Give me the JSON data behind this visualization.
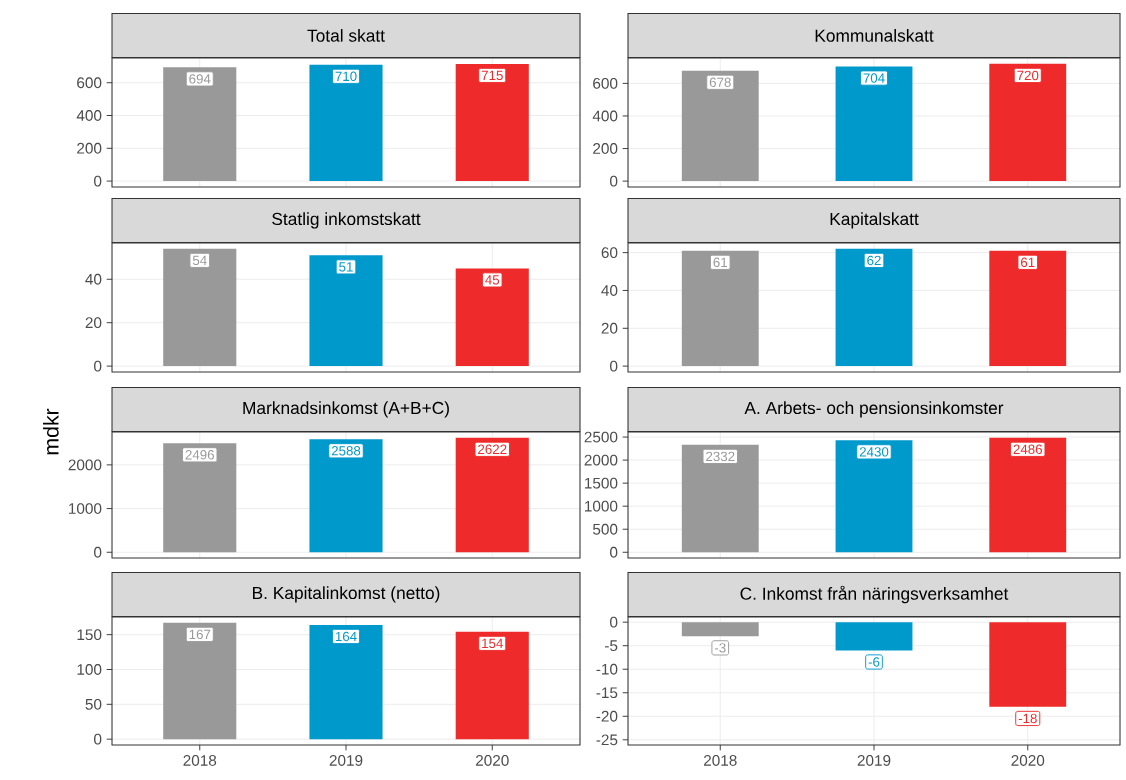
{
  "chart_data": [
    {
      "type": "bar",
      "title": "Total skatt",
      "categories": [
        "2018",
        "2019",
        "2020"
      ],
      "values": [
        694,
        710,
        715
      ],
      "colors": [
        "#999999",
        "#0099cc",
        "#ee2a2a"
      ],
      "ylim": [
        -36,
        751
      ],
      "yticks": [
        0,
        200,
        400,
        600
      ],
      "grid": true,
      "data_labels": true,
      "tick_labels": "y"
    },
    {
      "type": "bar",
      "title": "Kommunalskatt",
      "categories": [
        "2018",
        "2019",
        "2020"
      ],
      "values": [
        678,
        704,
        720
      ],
      "colors": [
        "#999999",
        "#0099cc",
        "#ee2a2a"
      ],
      "ylim": [
        -36,
        756
      ],
      "yticks": [
        0,
        200,
        400,
        600
      ],
      "grid": true,
      "data_labels": true,
      "tick_labels": "y"
    },
    {
      "type": "bar",
      "title": "Statlig inkomstskatt",
      "categories": [
        "2018",
        "2019",
        "2020"
      ],
      "values": [
        54,
        51,
        45
      ],
      "colors": [
        "#999999",
        "#0099cc",
        "#ee2a2a"
      ],
      "ylim": [
        -2.7,
        56.7
      ],
      "yticks": [
        0,
        20,
        40
      ],
      "grid": true,
      "data_labels": true,
      "tick_labels": "y"
    },
    {
      "type": "bar",
      "title": "Kapitalskatt",
      "categories": [
        "2018",
        "2019",
        "2020"
      ],
      "values": [
        61,
        62,
        61
      ],
      "colors": [
        "#999999",
        "#0099cc",
        "#ee2a2a"
      ],
      "ylim": [
        -3.1,
        65.1
      ],
      "yticks": [
        0,
        20,
        40,
        60
      ],
      "grid": true,
      "data_labels": true,
      "tick_labels": "y"
    },
    {
      "type": "bar",
      "title": "Marknadsinkomst (A+B+C)",
      "ylabel": "mdkr",
      "categories": [
        "2018",
        "2019",
        "2020"
      ],
      "values": [
        2496,
        2588,
        2622
      ],
      "colors": [
        "#999999",
        "#0099cc",
        "#ee2a2a"
      ],
      "ylim": [
        -131,
        2753
      ],
      "yticks": [
        0,
        1000,
        2000
      ],
      "grid": true,
      "data_labels": true,
      "tick_labels": "y"
    },
    {
      "type": "bar",
      "title": "A. Arbets- och pensionsinkomster",
      "categories": [
        "2018",
        "2019",
        "2020"
      ],
      "values": [
        2332,
        2430,
        2486
      ],
      "colors": [
        "#999999",
        "#0099cc",
        "#ee2a2a"
      ],
      "ylim": [
        -124,
        2610
      ],
      "yticks": [
        0,
        500,
        1000,
        1500,
        2000,
        2500
      ],
      "grid": true,
      "data_labels": true,
      "tick_labels": "y"
    },
    {
      "type": "bar",
      "title": "B. Kapitalinkomst (netto)",
      "categories": [
        "2018",
        "2019",
        "2020"
      ],
      "values": [
        167,
        164,
        154
      ],
      "colors": [
        "#999999",
        "#0099cc",
        "#ee2a2a"
      ],
      "ylim": [
        -8.35,
        175.35
      ],
      "yticks": [
        0,
        50,
        100,
        150
      ],
      "grid": true,
      "data_labels": true
    },
    {
      "type": "bar",
      "title": "C. Inkomst från näringsverksamhet",
      "categories": [
        "2018",
        "2019",
        "2020"
      ],
      "values": [
        -3,
        -6,
        -18
      ],
      "colors": [
        "#999999",
        "#0099cc",
        "#ee2a2a"
      ],
      "ylim": [
        -26.1,
        1.1
      ],
      "yticks": [
        0,
        -5,
        -10,
        -15,
        -20,
        -25
      ],
      "grid": true,
      "data_labels": true
    }
  ]
}
